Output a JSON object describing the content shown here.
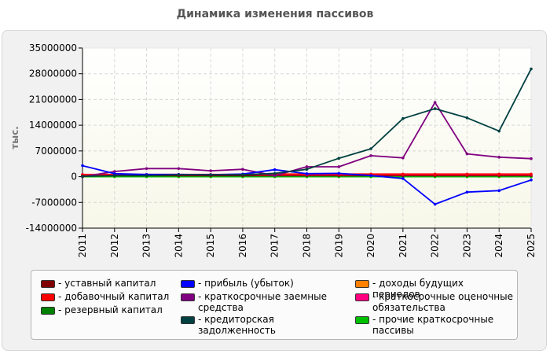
{
  "chart_data": {
    "type": "line",
    "title": "Динамика изменения пассивов",
    "ylabel": "тыс.",
    "xlabel": "",
    "x": [
      "2011",
      "2012",
      "2013",
      "2014",
      "2015",
      "2016",
      "2017",
      "2018",
      "2019",
      "2020",
      "2021",
      "2022",
      "2023",
      "2024",
      "2025"
    ],
    "ylim": [
      -14000000,
      35000000
    ],
    "yticks": [
      "35000000",
      "28000000",
      "21000000",
      "14000000",
      "7000000",
      "0",
      "-7000000",
      "-14000000"
    ],
    "grid": true,
    "legend_position": "bottom",
    "series": [
      {
        "name": "уставный капитал",
        "color": "#800000",
        "values": [
          300000,
          300000,
          300000,
          300000,
          300000,
          300000,
          300000,
          300000,
          300000,
          300000,
          300000,
          300000,
          300000,
          300000,
          300000
        ]
      },
      {
        "name": "добавочный капитал",
        "color": "#ff0000",
        "values": [
          500000,
          500000,
          500000,
          500000,
          500000,
          600000,
          700000,
          700000,
          700000,
          700000,
          700000,
          700000,
          700000,
          700000,
          700000
        ]
      },
      {
        "name": "резервный капитал",
        "color": "#008000",
        "values": [
          100000,
          100000,
          100000,
          100000,
          100000,
          100000,
          100000,
          100000,
          100000,
          100000,
          100000,
          100000,
          100000,
          100000,
          100000
        ]
      },
      {
        "name": "прибыль (убыток)",
        "color": "#0000ff",
        "values": [
          3000000,
          800000,
          600000,
          600000,
          500000,
          700000,
          1900000,
          800000,
          900000,
          300000,
          -500000,
          -7500000,
          -4200000,
          -3800000,
          -900000
        ]
      },
      {
        "name": "краткосрочные заемные средства",
        "color": "#800080",
        "values": [
          0,
          1400000,
          2200000,
          2200000,
          1600000,
          2000000,
          300000,
          2700000,
          2700000,
          5700000,
          5100000,
          20200000,
          6200000,
          5300000,
          4900000
        ]
      },
      {
        "name": "кредиторская задолженность",
        "color": "#004040",
        "values": [
          100000,
          300000,
          300000,
          500000,
          500000,
          500000,
          900000,
          2000000,
          5000000,
          7600000,
          15800000,
          18500000,
          16000000,
          12400000,
          29300000
        ]
      },
      {
        "name": "доходы будущих периодов",
        "color": "#ff8000",
        "values": [
          0,
          0,
          0,
          0,
          0,
          0,
          0,
          0,
          0,
          0,
          0,
          0,
          0,
          0,
          0
        ]
      },
      {
        "name": "краткосрочные оценочные обязательства",
        "color": "#ff0080",
        "values": [
          600000,
          600000,
          600000,
          600000,
          600000,
          600000,
          600000,
          600000,
          600000,
          600000,
          600000,
          600000,
          600000,
          600000,
          600000
        ]
      },
      {
        "name": "прочие краткосрочные пассивы",
        "color": "#00c000",
        "values": [
          0,
          0,
          0,
          0,
          0,
          0,
          0,
          0,
          0,
          0,
          0,
          0,
          0,
          0,
          0
        ]
      }
    ]
  }
}
